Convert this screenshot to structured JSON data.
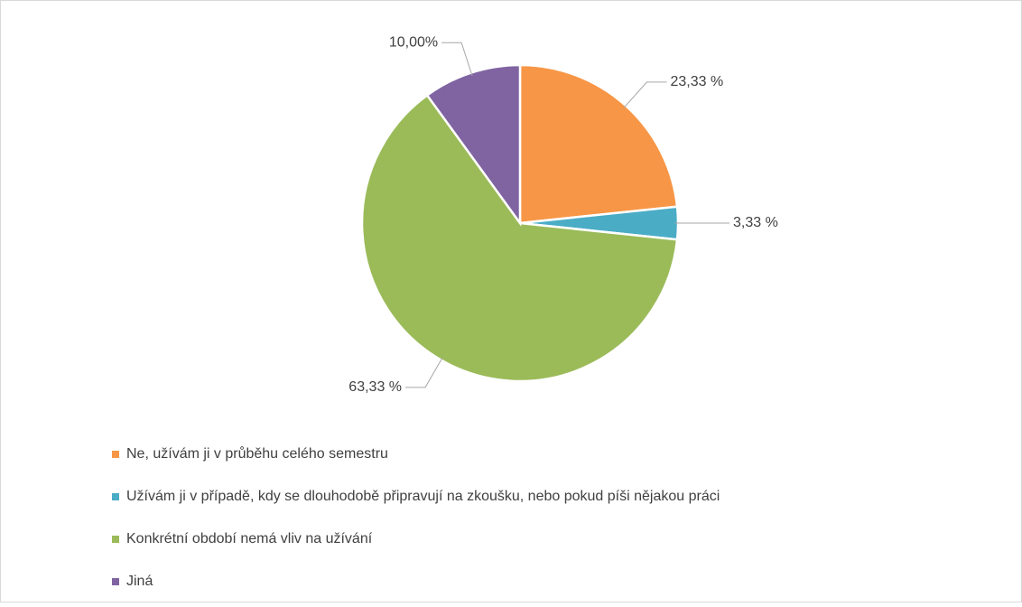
{
  "chart_data": {
    "type": "pie",
    "categories": [
      "Ne, užívám ji v průběhu celého semestru",
      "Užívám ji v případě, kdy se dlouhodobě připravují na zkoušku, nebo pokud píši nějakou práci",
      "Konkrétní období nemá vliv na užívání",
      "Jiná"
    ],
    "values": [
      23.33,
      3.33,
      63.33,
      10.0
    ],
    "value_labels": [
      "23,33 %",
      "3,33 %",
      "63,33 %",
      "10,00%"
    ],
    "colors": [
      "#f79646",
      "#4bacc6",
      "#9bbb59",
      "#8064a2"
    ],
    "legend": "bottom-left"
  }
}
